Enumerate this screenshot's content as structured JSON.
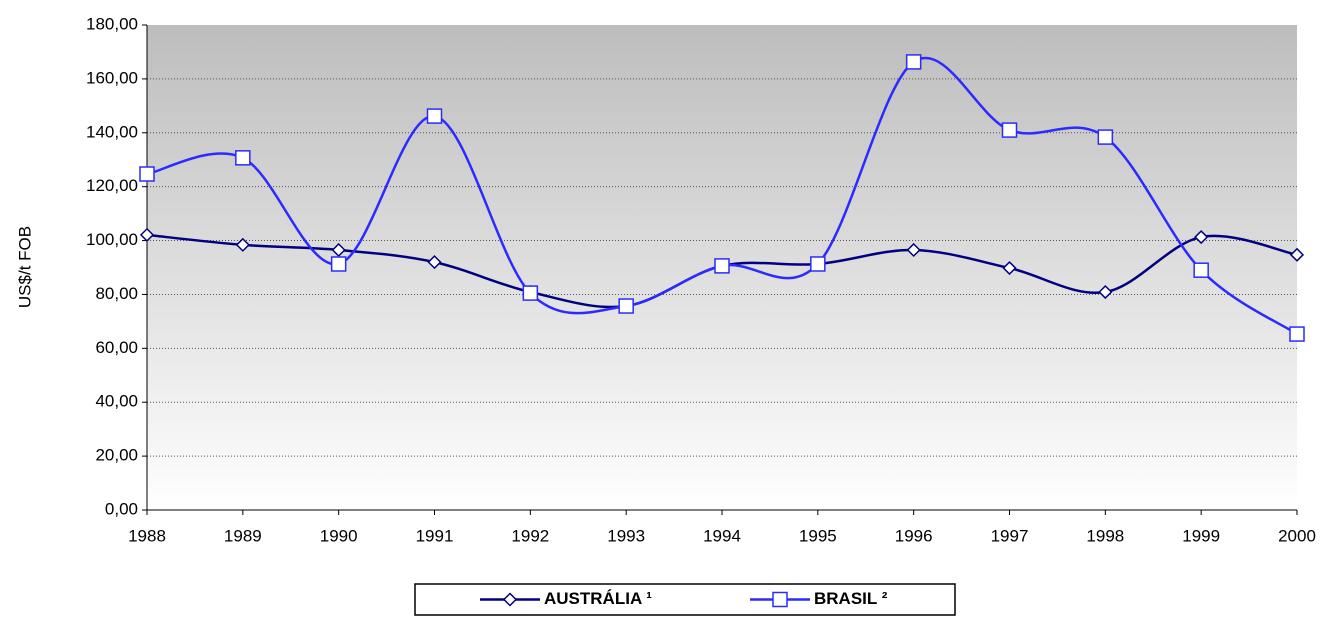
{
  "chart_data": {
    "type": "line",
    "y_label": "US$/t FOB",
    "categories": [
      "1988",
      "1989",
      "1990",
      "1991",
      "1992",
      "1993",
      "1994",
      "1995",
      "1996",
      "1997",
      "1998",
      "1999",
      "2000"
    ],
    "series": [
      {
        "name": "AUSTRÁLIA ¹",
        "color": "#000080",
        "marker": "diamond",
        "values": [
          102.1,
          98.4,
          96.5,
          92,
          80.9,
          75.7,
          90.6,
          91.3,
          96.5,
          89.8,
          80.9,
          101.3,
          94.7
        ]
      },
      {
        "name": "BRASIL ²",
        "color": "#2b2bff",
        "marker": "square",
        "values": [
          124.7,
          130.7,
          91.3,
          146.2,
          80.5,
          75.7,
          90.6,
          91.3,
          166.3,
          141,
          138.4,
          89,
          65.3
        ]
      }
    ],
    "ylim": [
      0,
      180
    ],
    "yticks": [
      {
        "value": 0,
        "label": "0,00"
      },
      {
        "value": 20,
        "label": "20,00"
      },
      {
        "value": 40,
        "label": "40,00"
      },
      {
        "value": 60,
        "label": "60,00"
      },
      {
        "value": 80,
        "label": "80,00"
      },
      {
        "value": 100,
        "label": "100,00"
      },
      {
        "value": 120,
        "label": "120,00"
      },
      {
        "value": 140,
        "label": "140,00"
      },
      {
        "value": 160,
        "label": "160,00"
      },
      {
        "value": 180,
        "label": "180,00"
      }
    ],
    "grid": true,
    "legend": "bottom"
  }
}
